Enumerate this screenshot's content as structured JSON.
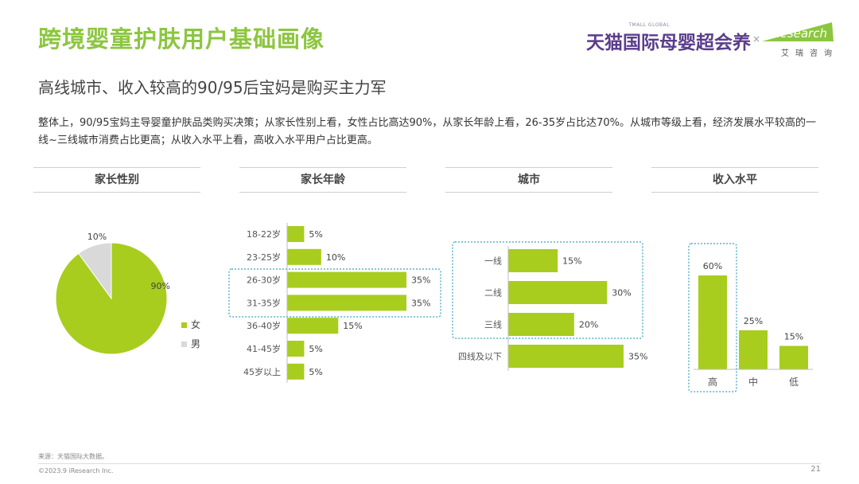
{
  "header": {
    "title": "跨境婴童护肤用户基础画像",
    "subtitle": "高线城市、收入较高的90/95后宝妈是购买主力军",
    "summary": "整体上，90/95宝妈主导婴童护肤品类购买决策；从家长性别上看，女性占比高达90%，从家长年龄上看，26-35岁占比达70%。从城市等级上看，经济发展水平较高的一线~三线城市消费占比更高；从收入水平上看，高收入水平用户占比更高。"
  },
  "logos": {
    "tmall_small": "TMALL GLOBAL",
    "tmall": "天猫国际母婴超会养",
    "separator": "×",
    "iresearch_cn": "艾瑞咨询",
    "iresearch_mark": "iResearch"
  },
  "sections": {
    "gender": "家长性别",
    "age": "家长年龄",
    "city": "城市",
    "income": "收入水平"
  },
  "colors": {
    "accent": "#8cc63f",
    "bar": "#a8cd1e",
    "pie_male": "#d9d9d9",
    "highlight_border": "#5ab4c8",
    "tmall_purple": "#5a3c8c"
  },
  "chart_data": [
    {
      "type": "pie",
      "title": "家长性别",
      "labels": [
        "女",
        "男"
      ],
      "values": [
        90,
        10
      ],
      "data_labels": [
        "90%",
        "10%"
      ],
      "legend": "right"
    },
    {
      "type": "bar",
      "orientation": "horizontal",
      "title": "家长年龄",
      "categories": [
        "18-22岁",
        "23-25岁",
        "26-30岁",
        "31-35岁",
        "36-40岁",
        "41-45岁",
        "45岁以上"
      ],
      "values": [
        5,
        10,
        35,
        35,
        15,
        5,
        5
      ],
      "data_labels": [
        "5%",
        "10%",
        "35%",
        "35%",
        "15%",
        "5%",
        "5%"
      ],
      "highlighted": [
        "26-30岁",
        "31-35岁"
      ]
    },
    {
      "type": "bar",
      "orientation": "horizontal",
      "title": "城市",
      "categories": [
        "一线",
        "二线",
        "三线",
        "四线及以下"
      ],
      "values": [
        15,
        30,
        20,
        35
      ],
      "data_labels": [
        "15%",
        "30%",
        "20%",
        "35%"
      ],
      "highlighted": [
        "一线",
        "二线",
        "三线"
      ]
    },
    {
      "type": "bar",
      "orientation": "vertical",
      "title": "收入水平",
      "categories": [
        "高",
        "中",
        "低"
      ],
      "values": [
        60,
        25,
        15
      ],
      "data_labels": [
        "60%",
        "25%",
        "15%"
      ],
      "highlighted": [
        "高"
      ]
    }
  ],
  "footer": {
    "source": "来源：天猫国际大数据。",
    "copyright": "©2023.9 iResearch Inc.",
    "page_number": "21"
  }
}
